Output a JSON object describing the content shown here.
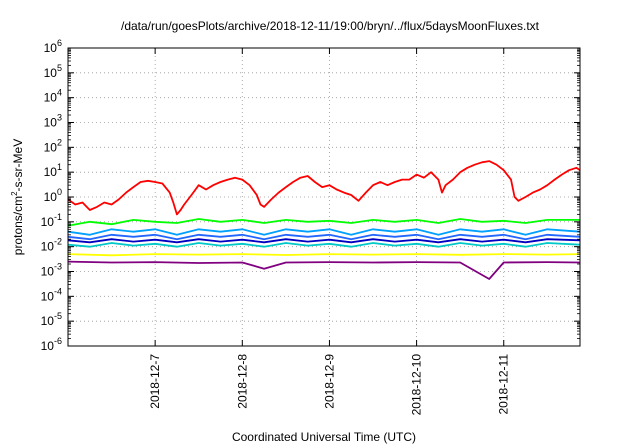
{
  "chart_data": {
    "type": "line",
    "title": "/data/run/goesPlots/archive/2018-12-11/19:00/bryn/../flux/5daysMoonFluxes.txt",
    "xlabel": "Coordinated Universal Time (UTC)",
    "ylabel": {
      "base": "protons/cm",
      "sup": "2",
      "rest": "-s-sr-MeV"
    },
    "x_range": [
      "2018-12-06T00:00",
      "2018-12-11T21:00"
    ],
    "x_ticks": [
      "2018-12-7",
      "2018-12-8",
      "2018-12-9",
      "2018-12-10",
      "2018-12-11"
    ],
    "y_scale": "log",
    "y_range": [
      1e-06,
      1000000.0
    ],
    "y_ticks": [
      {
        "value": 1e-06,
        "base": "10",
        "exp": "-6"
      },
      {
        "value": 1e-05,
        "base": "10",
        "exp": "-5"
      },
      {
        "value": 0.0001,
        "base": "10",
        "exp": "-4"
      },
      {
        "value": 0.001,
        "base": "10",
        "exp": "-3"
      },
      {
        "value": 0.01,
        "base": "10",
        "exp": "-2"
      },
      {
        "value": 0.1,
        "base": "10",
        "exp": "-1"
      },
      {
        "value": 1,
        "base": "10",
        "exp": "0"
      },
      {
        "value": 10,
        "base": "10",
        "exp": "1"
      },
      {
        "value": 100,
        "base": "10",
        "exp": "2"
      },
      {
        "value": 1000,
        "base": "10",
        "exp": "3"
      },
      {
        "value": 10000,
        "base": "10",
        "exp": "4"
      },
      {
        "value": 100000,
        "base": "10",
        "exp": "5"
      },
      {
        "value": 1000000,
        "base": "10",
        "exp": "6"
      }
    ],
    "grid": true,
    "series": [
      {
        "color": "#ff0000",
        "points": [
          [
            "2018-12-06T00:00",
            0.8
          ],
          [
            "2018-12-06T02:00",
            0.5
          ],
          [
            "2018-12-06T04:00",
            0.6
          ],
          [
            "2018-12-06T06:00",
            0.3
          ],
          [
            "2018-12-06T08:00",
            0.4
          ],
          [
            "2018-12-06T10:00",
            0.6
          ],
          [
            "2018-12-06T12:00",
            0.5
          ],
          [
            "2018-12-06T14:00",
            0.8
          ],
          [
            "2018-12-06T16:00",
            1.5
          ],
          [
            "2018-12-06T18:00",
            2.5
          ],
          [
            "2018-12-06T20:00",
            4
          ],
          [
            "2018-12-06T22:00",
            4.5
          ],
          [
            "2018-12-07T00:00",
            4
          ],
          [
            "2018-12-07T02:00",
            3.5
          ],
          [
            "2018-12-07T04:00",
            1.5
          ],
          [
            "2018-12-07T05:00",
            0.6
          ],
          [
            "2018-12-07T06:00",
            0.2
          ],
          [
            "2018-12-07T07:00",
            0.3
          ],
          [
            "2018-12-07T08:00",
            0.5
          ],
          [
            "2018-12-07T10:00",
            1.2
          ],
          [
            "2018-12-07T12:00",
            3
          ],
          [
            "2018-12-07T14:00",
            2
          ],
          [
            "2018-12-07T16:00",
            3
          ],
          [
            "2018-12-07T18:00",
            4
          ],
          [
            "2018-12-07T20:00",
            5
          ],
          [
            "2018-12-07T22:00",
            6
          ],
          [
            "2018-12-08T00:00",
            5
          ],
          [
            "2018-12-08T02:00",
            3
          ],
          [
            "2018-12-08T04:00",
            1.2
          ],
          [
            "2018-12-08T05:00",
            0.5
          ],
          [
            "2018-12-08T06:00",
            0.4
          ],
          [
            "2018-12-08T08:00",
            0.8
          ],
          [
            "2018-12-08T10:00",
            1.5
          ],
          [
            "2018-12-08T12:00",
            2.5
          ],
          [
            "2018-12-08T14:00",
            4
          ],
          [
            "2018-12-08T16:00",
            6
          ],
          [
            "2018-12-08T18:00",
            7
          ],
          [
            "2018-12-08T20:00",
            4
          ],
          [
            "2018-12-08T22:00",
            2.5
          ],
          [
            "2018-12-09T00:00",
            3
          ],
          [
            "2018-12-09T02:00",
            2
          ],
          [
            "2018-12-09T04:00",
            1.5
          ],
          [
            "2018-12-09T06:00",
            1.2
          ],
          [
            "2018-12-09T08:00",
            0.7
          ],
          [
            "2018-12-09T10:00",
            1.5
          ],
          [
            "2018-12-09T12:00",
            3
          ],
          [
            "2018-12-09T14:00",
            4
          ],
          [
            "2018-12-09T16:00",
            3
          ],
          [
            "2018-12-09T18:00",
            4
          ],
          [
            "2018-12-09T20:00",
            5
          ],
          [
            "2018-12-09T22:00",
            5
          ],
          [
            "2018-12-10T00:00",
            8
          ],
          [
            "2018-12-10T02:00",
            6
          ],
          [
            "2018-12-10T04:00",
            10
          ],
          [
            "2018-12-10T06:00",
            5
          ],
          [
            "2018-12-10T07:00",
            1.5
          ],
          [
            "2018-12-10T08:00",
            3
          ],
          [
            "2018-12-10T10:00",
            5
          ],
          [
            "2018-12-10T12:00",
            10
          ],
          [
            "2018-12-10T14:00",
            15
          ],
          [
            "2018-12-10T16:00",
            20
          ],
          [
            "2018-12-10T18:00",
            25
          ],
          [
            "2018-12-10T20:00",
            28
          ],
          [
            "2018-12-10T22:00",
            20
          ],
          [
            "2018-12-11T00:00",
            12
          ],
          [
            "2018-12-11T02:00",
            5
          ],
          [
            "2018-12-11T03:00",
            1
          ],
          [
            "2018-12-11T04:00",
            0.7
          ],
          [
            "2018-12-11T06:00",
            1
          ],
          [
            "2018-12-11T08:00",
            1.5
          ],
          [
            "2018-12-11T10:00",
            2
          ],
          [
            "2018-12-11T12:00",
            3
          ],
          [
            "2018-12-11T14:00",
            5
          ],
          [
            "2018-12-11T16:00",
            8
          ],
          [
            "2018-12-11T18:00",
            12
          ],
          [
            "2018-12-11T20:00",
            15
          ],
          [
            "2018-12-11T21:00",
            12
          ]
        ]
      },
      {
        "color": "#00ff00",
        "points": [
          [
            "2018-12-06T00:00",
            0.07
          ],
          [
            "2018-12-06T06:00",
            0.1
          ],
          [
            "2018-12-06T12:00",
            0.08
          ],
          [
            "2018-12-06T18:00",
            0.12
          ],
          [
            "2018-12-07T00:00",
            0.1
          ],
          [
            "2018-12-07T06:00",
            0.09
          ],
          [
            "2018-12-07T12:00",
            0.13
          ],
          [
            "2018-12-07T18:00",
            0.1
          ],
          [
            "2018-12-08T00:00",
            0.12
          ],
          [
            "2018-12-08T06:00",
            0.09
          ],
          [
            "2018-12-08T12:00",
            0.12
          ],
          [
            "2018-12-08T18:00",
            0.1
          ],
          [
            "2018-12-09T00:00",
            0.11
          ],
          [
            "2018-12-09T06:00",
            0.09
          ],
          [
            "2018-12-09T12:00",
            0.12
          ],
          [
            "2018-12-09T18:00",
            0.1
          ],
          [
            "2018-12-10T00:00",
            0.12
          ],
          [
            "2018-12-10T06:00",
            0.09
          ],
          [
            "2018-12-10T12:00",
            0.13
          ],
          [
            "2018-12-10T18:00",
            0.1
          ],
          [
            "2018-12-11T00:00",
            0.11
          ],
          [
            "2018-12-11T06:00",
            0.09
          ],
          [
            "2018-12-11T12:00",
            0.12
          ],
          [
            "2018-12-11T21:00",
            0.12
          ]
        ]
      },
      {
        "color": "#00a0ff",
        "points": [
          [
            "2018-12-06T00:00",
            0.04
          ],
          [
            "2018-12-06T06:00",
            0.03
          ],
          [
            "2018-12-06T12:00",
            0.05
          ],
          [
            "2018-12-06T18:00",
            0.04
          ],
          [
            "2018-12-07T00:00",
            0.05
          ],
          [
            "2018-12-07T06:00",
            0.03
          ],
          [
            "2018-12-07T12:00",
            0.05
          ],
          [
            "2018-12-07T18:00",
            0.04
          ],
          [
            "2018-12-08T00:00",
            0.05
          ],
          [
            "2018-12-08T06:00",
            0.03
          ],
          [
            "2018-12-08T12:00",
            0.05
          ],
          [
            "2018-12-08T18:00",
            0.04
          ],
          [
            "2018-12-09T00:00",
            0.05
          ],
          [
            "2018-12-09T06:00",
            0.03
          ],
          [
            "2018-12-09T12:00",
            0.05
          ],
          [
            "2018-12-09T18:00",
            0.04
          ],
          [
            "2018-12-10T00:00",
            0.05
          ],
          [
            "2018-12-10T06:00",
            0.03
          ],
          [
            "2018-12-10T12:00",
            0.05
          ],
          [
            "2018-12-10T18:00",
            0.04
          ],
          [
            "2018-12-11T00:00",
            0.05
          ],
          [
            "2018-12-11T06:00",
            0.03
          ],
          [
            "2018-12-11T12:00",
            0.05
          ],
          [
            "2018-12-11T21:00",
            0.04
          ]
        ]
      },
      {
        "color": "#2266ff",
        "points": [
          [
            "2018-12-06T00:00",
            0.025
          ],
          [
            "2018-12-06T06:00",
            0.02
          ],
          [
            "2018-12-06T12:00",
            0.03
          ],
          [
            "2018-12-06T18:00",
            0.025
          ],
          [
            "2018-12-07T00:00",
            0.03
          ],
          [
            "2018-12-07T06:00",
            0.02
          ],
          [
            "2018-12-07T12:00",
            0.03
          ],
          [
            "2018-12-07T18:00",
            0.025
          ],
          [
            "2018-12-08T00:00",
            0.03
          ],
          [
            "2018-12-08T06:00",
            0.02
          ],
          [
            "2018-12-08T12:00",
            0.03
          ],
          [
            "2018-12-08T18:00",
            0.025
          ],
          [
            "2018-12-09T00:00",
            0.03
          ],
          [
            "2018-12-09T06:00",
            0.02
          ],
          [
            "2018-12-09T12:00",
            0.03
          ],
          [
            "2018-12-09T18:00",
            0.025
          ],
          [
            "2018-12-10T00:00",
            0.03
          ],
          [
            "2018-12-10T06:00",
            0.02
          ],
          [
            "2018-12-10T12:00",
            0.03
          ],
          [
            "2018-12-10T18:00",
            0.025
          ],
          [
            "2018-12-11T00:00",
            0.03
          ],
          [
            "2018-12-11T06:00",
            0.02
          ],
          [
            "2018-12-11T12:00",
            0.03
          ],
          [
            "2018-12-11T21:00",
            0.025
          ]
        ]
      },
      {
        "color": "#00c8c8",
        "points": [
          [
            "2018-12-06T00:00",
            0.012
          ],
          [
            "2018-12-06T06:00",
            0.01
          ],
          [
            "2018-12-06T12:00",
            0.014
          ],
          [
            "2018-12-06T18:00",
            0.011
          ],
          [
            "2018-12-07T00:00",
            0.013
          ],
          [
            "2018-12-07T06:00",
            0.01
          ],
          [
            "2018-12-07T12:00",
            0.014
          ],
          [
            "2018-12-07T18:00",
            0.011
          ],
          [
            "2018-12-08T00:00",
            0.013
          ],
          [
            "2018-12-08T06:00",
            0.01
          ],
          [
            "2018-12-08T12:00",
            0.014
          ],
          [
            "2018-12-08T18:00",
            0.011
          ],
          [
            "2018-12-09T00:00",
            0.013
          ],
          [
            "2018-12-09T06:00",
            0.01
          ],
          [
            "2018-12-09T12:00",
            0.014
          ],
          [
            "2018-12-09T18:00",
            0.011
          ],
          [
            "2018-12-10T00:00",
            0.013
          ],
          [
            "2018-12-10T06:00",
            0.01
          ],
          [
            "2018-12-10T12:00",
            0.014
          ],
          [
            "2018-12-10T18:00",
            0.011
          ],
          [
            "2018-12-11T00:00",
            0.013
          ],
          [
            "2018-12-11T06:00",
            0.01
          ],
          [
            "2018-12-11T12:00",
            0.014
          ],
          [
            "2018-12-11T21:00",
            0.012
          ]
        ]
      },
      {
        "color": "#0000c0",
        "points": [
          [
            "2018-12-06T00:00",
            0.018
          ],
          [
            "2018-12-06T06:00",
            0.015
          ],
          [
            "2018-12-06T12:00",
            0.02
          ],
          [
            "2018-12-06T18:00",
            0.016
          ],
          [
            "2018-12-07T00:00",
            0.019
          ],
          [
            "2018-12-07T06:00",
            0.015
          ],
          [
            "2018-12-07T12:00",
            0.02
          ],
          [
            "2018-12-07T18:00",
            0.016
          ],
          [
            "2018-12-08T00:00",
            0.019
          ],
          [
            "2018-12-08T06:00",
            0.015
          ],
          [
            "2018-12-08T12:00",
            0.02
          ],
          [
            "2018-12-08T18:00",
            0.016
          ],
          [
            "2018-12-09T00:00",
            0.019
          ],
          [
            "2018-12-09T06:00",
            0.015
          ],
          [
            "2018-12-09T12:00",
            0.02
          ],
          [
            "2018-12-09T18:00",
            0.016
          ],
          [
            "2018-12-10T00:00",
            0.019
          ],
          [
            "2018-12-10T06:00",
            0.015
          ],
          [
            "2018-12-10T12:00",
            0.02
          ],
          [
            "2018-12-10T18:00",
            0.016
          ],
          [
            "2018-12-11T00:00",
            0.019
          ],
          [
            "2018-12-11T06:00",
            0.015
          ],
          [
            "2018-12-11T12:00",
            0.02
          ],
          [
            "2018-12-11T21:00",
            0.018
          ]
        ]
      },
      {
        "color": "#ffff00",
        "points": [
          [
            "2018-12-06T00:00",
            0.005
          ],
          [
            "2018-12-06T12:00",
            0.0045
          ],
          [
            "2018-12-07T00:00",
            0.005
          ],
          [
            "2018-12-07T12:00",
            0.0048
          ],
          [
            "2018-12-08T00:00",
            0.005
          ],
          [
            "2018-12-08T12:00",
            0.0046
          ],
          [
            "2018-12-09T00:00",
            0.005
          ],
          [
            "2018-12-09T12:00",
            0.0048
          ],
          [
            "2018-12-10T00:00",
            0.005
          ],
          [
            "2018-12-10T12:00",
            0.0047
          ],
          [
            "2018-12-11T00:00",
            0.005
          ],
          [
            "2018-12-11T12:00",
            0.0048
          ],
          [
            "2018-12-11T21:00",
            0.005
          ]
        ]
      },
      {
        "color": "#800080",
        "points": [
          [
            "2018-12-06T00:00",
            0.0025
          ],
          [
            "2018-12-06T12:00",
            0.0023
          ],
          [
            "2018-12-07T00:00",
            0.0024
          ],
          [
            "2018-12-07T12:00",
            0.0022
          ],
          [
            "2018-12-08T00:00",
            0.0023
          ],
          [
            "2018-12-08T06:00",
            0.0013
          ],
          [
            "2018-12-08T12:00",
            0.0023
          ],
          [
            "2018-12-09T00:00",
            0.0024
          ],
          [
            "2018-12-09T12:00",
            0.0023
          ],
          [
            "2018-12-10T00:00",
            0.0024
          ],
          [
            "2018-12-10T12:00",
            0.0023
          ],
          [
            "2018-12-10T20:00",
            0.0005
          ],
          [
            "2018-12-11T00:00",
            0.0023
          ],
          [
            "2018-12-11T12:00",
            0.0024
          ],
          [
            "2018-12-11T21:00",
            0.0023
          ]
        ]
      }
    ]
  }
}
